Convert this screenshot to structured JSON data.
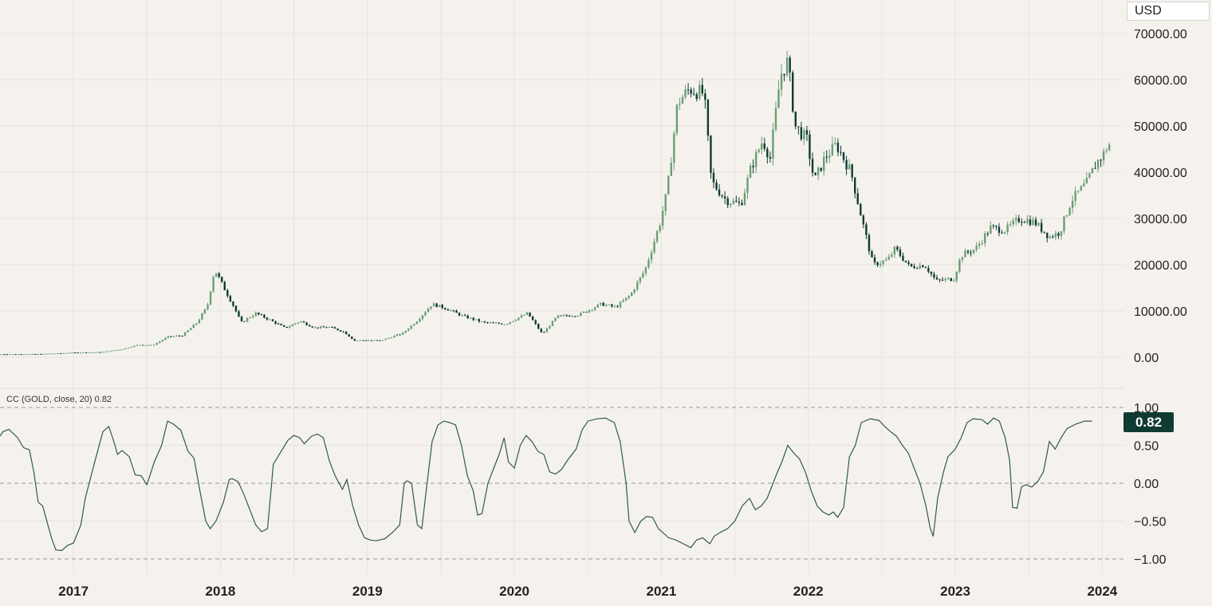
{
  "currency_label": "USD",
  "colors": {
    "background": "#f5f2ee",
    "grid": "#e6e2dc",
    "up": "#6b9e73",
    "down": "#0f3b32",
    "indicator_line": "#2f5a4a",
    "badge": "#0f3b32"
  },
  "indicator": {
    "legend": "CC (GOLD, close, 20)  0.82",
    "last_value_badge": "0.82"
  },
  "chart_data": [
    {
      "type": "candlestick",
      "y_axis_position": "right",
      "y_ticks": [
        "0.00",
        "10000.00",
        "20000.00",
        "30000.00",
        "40000.00",
        "50000.00",
        "60000.00",
        "70000.00"
      ],
      "ylim": [
        -1500,
        75000
      ],
      "x_ticks": [
        "2017",
        "2018",
        "2019",
        "2020",
        "2021",
        "2022",
        "2023",
        "2024"
      ],
      "xlim": [
        2016.5,
        2024.15
      ],
      "grid": true,
      "close_series": [
        [
          2016.5,
          650
        ],
        [
          2016.75,
          680
        ],
        [
          2016.95,
          900
        ],
        [
          2017.0,
          1000
        ],
        [
          2017.2,
          1100
        ],
        [
          2017.35,
          1800
        ],
        [
          2017.45,
          2700
        ],
        [
          2017.55,
          2600
        ],
        [
          2017.65,
          4400
        ],
        [
          2017.75,
          4700
        ],
        [
          2017.85,
          7500
        ],
        [
          2017.92,
          11000
        ],
        [
          2017.97,
          19000
        ],
        [
          2018.05,
          14000
        ],
        [
          2018.1,
          11000
        ],
        [
          2018.15,
          7500
        ],
        [
          2018.25,
          9500
        ],
        [
          2018.35,
          8000
        ],
        [
          2018.45,
          6300
        ],
        [
          2018.55,
          7800
        ],
        [
          2018.65,
          6400
        ],
        [
          2018.75,
          6500
        ],
        [
          2018.85,
          5500
        ],
        [
          2018.92,
          3600
        ],
        [
          2019.0,
          3700
        ],
        [
          2019.1,
          3600
        ],
        [
          2019.25,
          5200
        ],
        [
          2019.35,
          8000
        ],
        [
          2019.45,
          11500
        ],
        [
          2019.55,
          10500
        ],
        [
          2019.65,
          9000
        ],
        [
          2019.8,
          7500
        ],
        [
          2019.95,
          7200
        ],
        [
          2020.1,
          9500
        ],
        [
          2020.2,
          5000
        ],
        [
          2020.3,
          8800
        ],
        [
          2020.45,
          9200
        ],
        [
          2020.6,
          11500
        ],
        [
          2020.7,
          10800
        ],
        [
          2020.8,
          13500
        ],
        [
          2020.9,
          19000
        ],
        [
          2021.0,
          29000
        ],
        [
          2021.05,
          36000
        ],
        [
          2021.12,
          55000
        ],
        [
          2021.2,
          58000
        ],
        [
          2021.3,
          57000
        ],
        [
          2021.35,
          38000
        ],
        [
          2021.45,
          34000
        ],
        [
          2021.55,
          33000
        ],
        [
          2021.62,
          41000
        ],
        [
          2021.7,
          47000
        ],
        [
          2021.75,
          43000
        ],
        [
          2021.82,
          61000
        ],
        [
          2021.87,
          64000
        ],
        [
          2021.92,
          50000
        ],
        [
          2022.0,
          47000
        ],
        [
          2022.05,
          38000
        ],
        [
          2022.12,
          43000
        ],
        [
          2022.2,
          46000
        ],
        [
          2022.3,
          40000
        ],
        [
          2022.38,
          29000
        ],
        [
          2022.45,
          20000
        ],
        [
          2022.55,
          21000
        ],
        [
          2022.6,
          23500
        ],
        [
          2022.7,
          19500
        ],
        [
          2022.8,
          20000
        ],
        [
          2022.88,
          16500
        ],
        [
          2023.0,
          17000
        ],
        [
          2023.05,
          22000
        ],
        [
          2023.15,
          23500
        ],
        [
          2023.25,
          28000
        ],
        [
          2023.35,
          27500
        ],
        [
          2023.45,
          30000
        ],
        [
          2023.55,
          29200
        ],
        [
          2023.65,
          26000
        ],
        [
          2023.72,
          27000
        ],
        [
          2023.8,
          34000
        ],
        [
          2023.9,
          37500
        ],
        [
          2023.97,
          42000
        ],
        [
          2024.02,
          44000
        ],
        [
          2024.05,
          46000
        ]
      ]
    },
    {
      "type": "line",
      "name": "CC (GOLD, close, 20)",
      "y_ticks": [
        "1.00",
        "0.50",
        "0.00",
        "−0.50",
        "−1.00"
      ],
      "ylim": [
        -1.0,
        1.0
      ],
      "xlim": [
        2016.5,
        2024.15
      ],
      "reference_lines": [
        1.0,
        0.0,
        -1.0
      ],
      "last_value": 0.82,
      "points": [
        [
          2016.5,
          0.62
        ],
        [
          2016.52,
          0.68
        ],
        [
          2016.56,
          0.71
        ],
        [
          2016.62,
          0.6
        ],
        [
          2016.66,
          0.47
        ],
        [
          2016.7,
          0.44
        ],
        [
          2016.73,
          0.15
        ],
        [
          2016.76,
          -0.25
        ],
        [
          2016.79,
          -0.3
        ],
        [
          2016.85,
          -0.72
        ],
        [
          2016.88,
          -0.88
        ],
        [
          2016.92,
          -0.89
        ],
        [
          2016.96,
          -0.82
        ],
        [
          2017.0,
          -0.79
        ],
        [
          2017.05,
          -0.55
        ],
        [
          2017.08,
          -0.2
        ],
        [
          2017.14,
          0.25
        ],
        [
          2017.2,
          0.68
        ],
        [
          2017.24,
          0.75
        ],
        [
          2017.27,
          0.58
        ],
        [
          2017.3,
          0.38
        ],
        [
          2017.33,
          0.43
        ],
        [
          2017.38,
          0.35
        ],
        [
          2017.42,
          0.11
        ],
        [
          2017.46,
          0.1
        ],
        [
          2017.5,
          -0.02
        ],
        [
          2017.55,
          0.28
        ],
        [
          2017.6,
          0.5
        ],
        [
          2017.64,
          0.82
        ],
        [
          2017.68,
          0.78
        ],
        [
          2017.73,
          0.7
        ],
        [
          2017.78,
          0.42
        ],
        [
          2017.82,
          0.33
        ],
        [
          2017.86,
          -0.1
        ],
        [
          2017.9,
          -0.5
        ],
        [
          2017.93,
          -0.6
        ],
        [
          2017.97,
          -0.5
        ],
        [
          2018.02,
          -0.25
        ],
        [
          2018.06,
          0.05
        ],
        [
          2018.08,
          0.06
        ],
        [
          2018.12,
          0.02
        ],
        [
          2018.16,
          -0.15
        ],
        [
          2018.2,
          -0.35
        ],
        [
          2018.24,
          -0.55
        ],
        [
          2018.28,
          -0.64
        ],
        [
          2018.32,
          -0.6
        ],
        [
          2018.36,
          0.25
        ],
        [
          2018.4,
          0.38
        ],
        [
          2018.46,
          0.57
        ],
        [
          2018.5,
          0.63
        ],
        [
          2018.54,
          0.6
        ],
        [
          2018.57,
          0.52
        ],
        [
          2018.62,
          0.62
        ],
        [
          2018.66,
          0.65
        ],
        [
          2018.7,
          0.6
        ],
        [
          2018.74,
          0.3
        ],
        [
          2018.78,
          0.1
        ],
        [
          2018.83,
          -0.08
        ],
        [
          2018.86,
          0.05
        ],
        [
          2018.9,
          -0.3
        ],
        [
          2018.94,
          -0.55
        ],
        [
          2018.98,
          -0.72
        ],
        [
          2019.02,
          -0.75
        ],
        [
          2019.06,
          -0.76
        ],
        [
          2019.12,
          -0.73
        ],
        [
          2019.17,
          -0.65
        ],
        [
          2019.22,
          -0.55
        ],
        [
          2019.25,
          0.0
        ],
        [
          2019.27,
          0.03
        ],
        [
          2019.3,
          0.0
        ],
        [
          2019.34,
          -0.55
        ],
        [
          2019.37,
          -0.6
        ],
        [
          2019.4,
          -0.1
        ],
        [
          2019.44,
          0.55
        ],
        [
          2019.48,
          0.77
        ],
        [
          2019.52,
          0.82
        ],
        [
          2019.56,
          0.8
        ],
        [
          2019.6,
          0.77
        ],
        [
          2019.64,
          0.5
        ],
        [
          2019.68,
          0.1
        ],
        [
          2019.72,
          -0.1
        ],
        [
          2019.75,
          -0.42
        ],
        [
          2019.78,
          -0.4
        ],
        [
          2019.82,
          0.0
        ],
        [
          2019.86,
          0.2
        ],
        [
          2019.9,
          0.4
        ],
        [
          2019.93,
          0.6
        ],
        [
          2019.96,
          0.28
        ],
        [
          2020.0,
          0.2
        ],
        [
          2020.04,
          0.5
        ],
        [
          2020.08,
          0.63
        ],
        [
          2020.12,
          0.55
        ],
        [
          2020.16,
          0.42
        ],
        [
          2020.2,
          0.38
        ],
        [
          2020.24,
          0.15
        ],
        [
          2020.28,
          0.12
        ],
        [
          2020.32,
          0.18
        ],
        [
          2020.36,
          0.3
        ],
        [
          2020.42,
          0.45
        ],
        [
          2020.46,
          0.7
        ],
        [
          2020.5,
          0.82
        ],
        [
          2020.56,
          0.85
        ],
        [
          2020.62,
          0.86
        ],
        [
          2020.68,
          0.8
        ],
        [
          2020.72,
          0.55
        ],
        [
          2020.76,
          0.0
        ],
        [
          2020.78,
          -0.5
        ],
        [
          2020.82,
          -0.65
        ],
        [
          2020.86,
          -0.5
        ],
        [
          2020.9,
          -0.44
        ],
        [
          2020.94,
          -0.45
        ],
        [
          2020.98,
          -0.6
        ],
        [
          2021.05,
          -0.72
        ],
        [
          2021.1,
          -0.75
        ],
        [
          2021.15,
          -0.8
        ],
        [
          2021.2,
          -0.85
        ],
        [
          2021.24,
          -0.75
        ],
        [
          2021.28,
          -0.72
        ],
        [
          2021.33,
          -0.8
        ],
        [
          2021.36,
          -0.7
        ],
        [
          2021.4,
          -0.65
        ],
        [
          2021.45,
          -0.6
        ],
        [
          2021.5,
          -0.5
        ],
        [
          2021.55,
          -0.3
        ],
        [
          2021.6,
          -0.2
        ],
        [
          2021.64,
          -0.35
        ],
        [
          2021.68,
          -0.3
        ],
        [
          2021.72,
          -0.2
        ],
        [
          2021.78,
          0.1
        ],
        [
          2021.82,
          0.28
        ],
        [
          2021.86,
          0.5
        ],
        [
          2021.9,
          0.4
        ],
        [
          2021.94,
          0.32
        ],
        [
          2021.98,
          0.15
        ],
        [
          2022.02,
          -0.1
        ],
        [
          2022.06,
          -0.3
        ],
        [
          2022.1,
          -0.38
        ],
        [
          2022.14,
          -0.42
        ],
        [
          2022.17,
          -0.38
        ],
        [
          2022.2,
          -0.45
        ],
        [
          2022.24,
          -0.32
        ],
        [
          2022.28,
          0.35
        ],
        [
          2022.32,
          0.5
        ],
        [
          2022.36,
          0.8
        ],
        [
          2022.42,
          0.85
        ],
        [
          2022.48,
          0.83
        ],
        [
          2022.52,
          0.75
        ],
        [
          2022.56,
          0.68
        ],
        [
          2022.6,
          0.62
        ],
        [
          2022.64,
          0.5
        ],
        [
          2022.68,
          0.4
        ],
        [
          2022.72,
          0.2
        ],
        [
          2022.76,
          0.0
        ],
        [
          2022.8,
          -0.3
        ],
        [
          2022.83,
          -0.6
        ],
        [
          2022.85,
          -0.7
        ],
        [
          2022.88,
          -0.2
        ],
        [
          2022.92,
          0.15
        ],
        [
          2022.95,
          0.35
        ],
        [
          2023.0,
          0.45
        ],
        [
          2023.04,
          0.6
        ],
        [
          2023.08,
          0.8
        ],
        [
          2023.12,
          0.85
        ],
        [
          2023.18,
          0.84
        ],
        [
          2023.22,
          0.78
        ],
        [
          2023.26,
          0.86
        ],
        [
          2023.3,
          0.82
        ],
        [
          2023.34,
          0.6
        ],
        [
          2023.37,
          0.3
        ],
        [
          2023.39,
          -0.32
        ],
        [
          2023.42,
          -0.33
        ],
        [
          2023.45,
          -0.05
        ],
        [
          2023.48,
          -0.02
        ],
        [
          2023.52,
          -0.05
        ],
        [
          2023.56,
          0.02
        ],
        [
          2023.6,
          0.15
        ],
        [
          2023.64,
          0.55
        ],
        [
          2023.68,
          0.45
        ],
        [
          2023.72,
          0.6
        ],
        [
          2023.76,
          0.72
        ],
        [
          2023.82,
          0.78
        ],
        [
          2023.88,
          0.82
        ],
        [
          2023.93,
          0.82
        ]
      ]
    }
  ]
}
